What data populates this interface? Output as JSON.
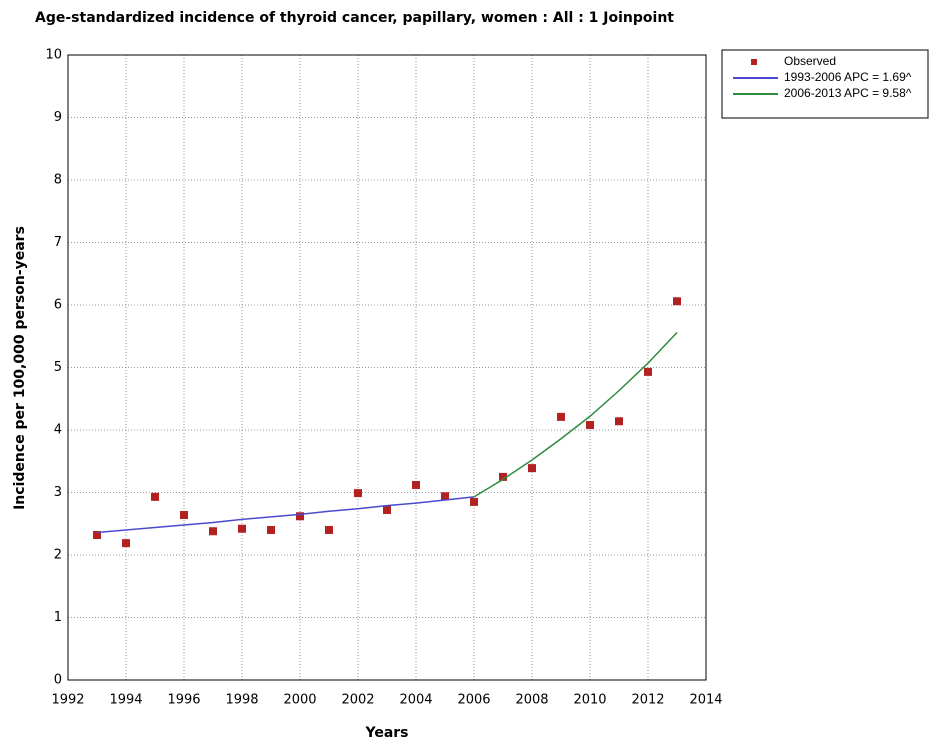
{
  "chart_data": {
    "type": "line",
    "title": "Age-standardized incidence of thyroid cancer, papillary, women : All : 1 Joinpoint",
    "x_label": "Years",
    "y_label": "Incidence per 100,000 person-years",
    "xlim": [
      1992,
      2014
    ],
    "xticks": [
      1992,
      1994,
      1996,
      1998,
      2000,
      2002,
      2004,
      2006,
      2008,
      2010,
      2012,
      2014
    ],
    "ylim": [
      0,
      10
    ],
    "yticks": [
      0,
      1,
      2,
      3,
      4,
      5,
      6,
      7,
      8,
      9,
      10
    ],
    "grid": true,
    "legend": "right",
    "series": [
      {
        "name": "Observed",
        "color": "#b22222",
        "style": "markers",
        "x": [
          1993,
          1994,
          1995,
          1996,
          1997,
          1998,
          1999,
          2000,
          2001,
          2002,
          2003,
          2004,
          2005,
          2006,
          2007,
          2008,
          2009,
          2010,
          2011,
          2012,
          2013
        ],
        "values": [
          2.32,
          2.19,
          2.93,
          2.64,
          2.38,
          2.42,
          2.4,
          2.62,
          2.4,
          2.99,
          2.72,
          3.12,
          2.94,
          2.85,
          3.25,
          3.39,
          4.21,
          4.08,
          4.14,
          4.93,
          6.06
        ]
      },
      {
        "name": "1993-2006 APC  = 1.69^",
        "color": "#4a4acf",
        "style": "line",
        "x": [
          1993,
          1994,
          1995,
          1996,
          1997,
          1998,
          1999,
          2000,
          2001,
          2002,
          2003,
          2004,
          2005,
          2006
        ],
        "values": [
          2.36,
          2.4,
          2.44,
          2.48,
          2.52,
          2.57,
          2.61,
          2.65,
          2.7,
          2.74,
          2.79,
          2.83,
          2.88,
          2.93
        ]
      },
      {
        "name": "2006-2013 APC  = 9.58^",
        "color": "#2e8b3e",
        "style": "line",
        "x": [
          2006,
          2007,
          2008,
          2009,
          2010,
          2011,
          2012,
          2013
        ],
        "values": [
          2.93,
          3.21,
          3.52,
          3.86,
          4.22,
          4.63,
          5.07,
          5.56
        ]
      }
    ]
  }
}
